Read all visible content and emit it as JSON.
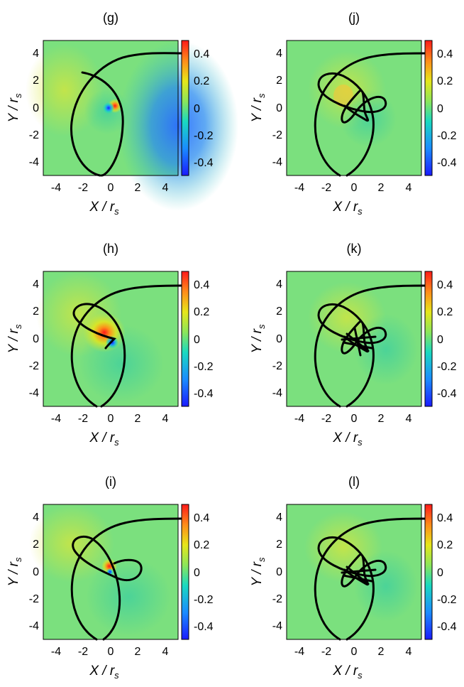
{
  "chart_data": {
    "type": "heatmap",
    "common": {
      "xlabel": "X / r",
      "ylabel": "Y / r",
      "label_subscript": "s",
      "xlim": [
        -5,
        5
      ],
      "ylim": [
        -5,
        5
      ],
      "xticks": [
        "-4",
        "-2",
        "0",
        "2",
        "4"
      ],
      "yticks": [
        "4",
        "2",
        "0",
        "-2",
        "-4"
      ],
      "colorbar": {
        "range": [
          -0.5,
          0.5
        ],
        "ticks": [
          "0.4",
          "0.2",
          "0",
          "-0.2",
          "-0.4"
        ],
        "colormap": "jet"
      }
    },
    "panels": [
      {
        "title": "(g)"
      },
      {
        "title": "(j)"
      },
      {
        "title": "(h)"
      },
      {
        "title": "(k)"
      },
      {
        "title": "(i)"
      },
      {
        "title": "(l)"
      }
    ]
  }
}
